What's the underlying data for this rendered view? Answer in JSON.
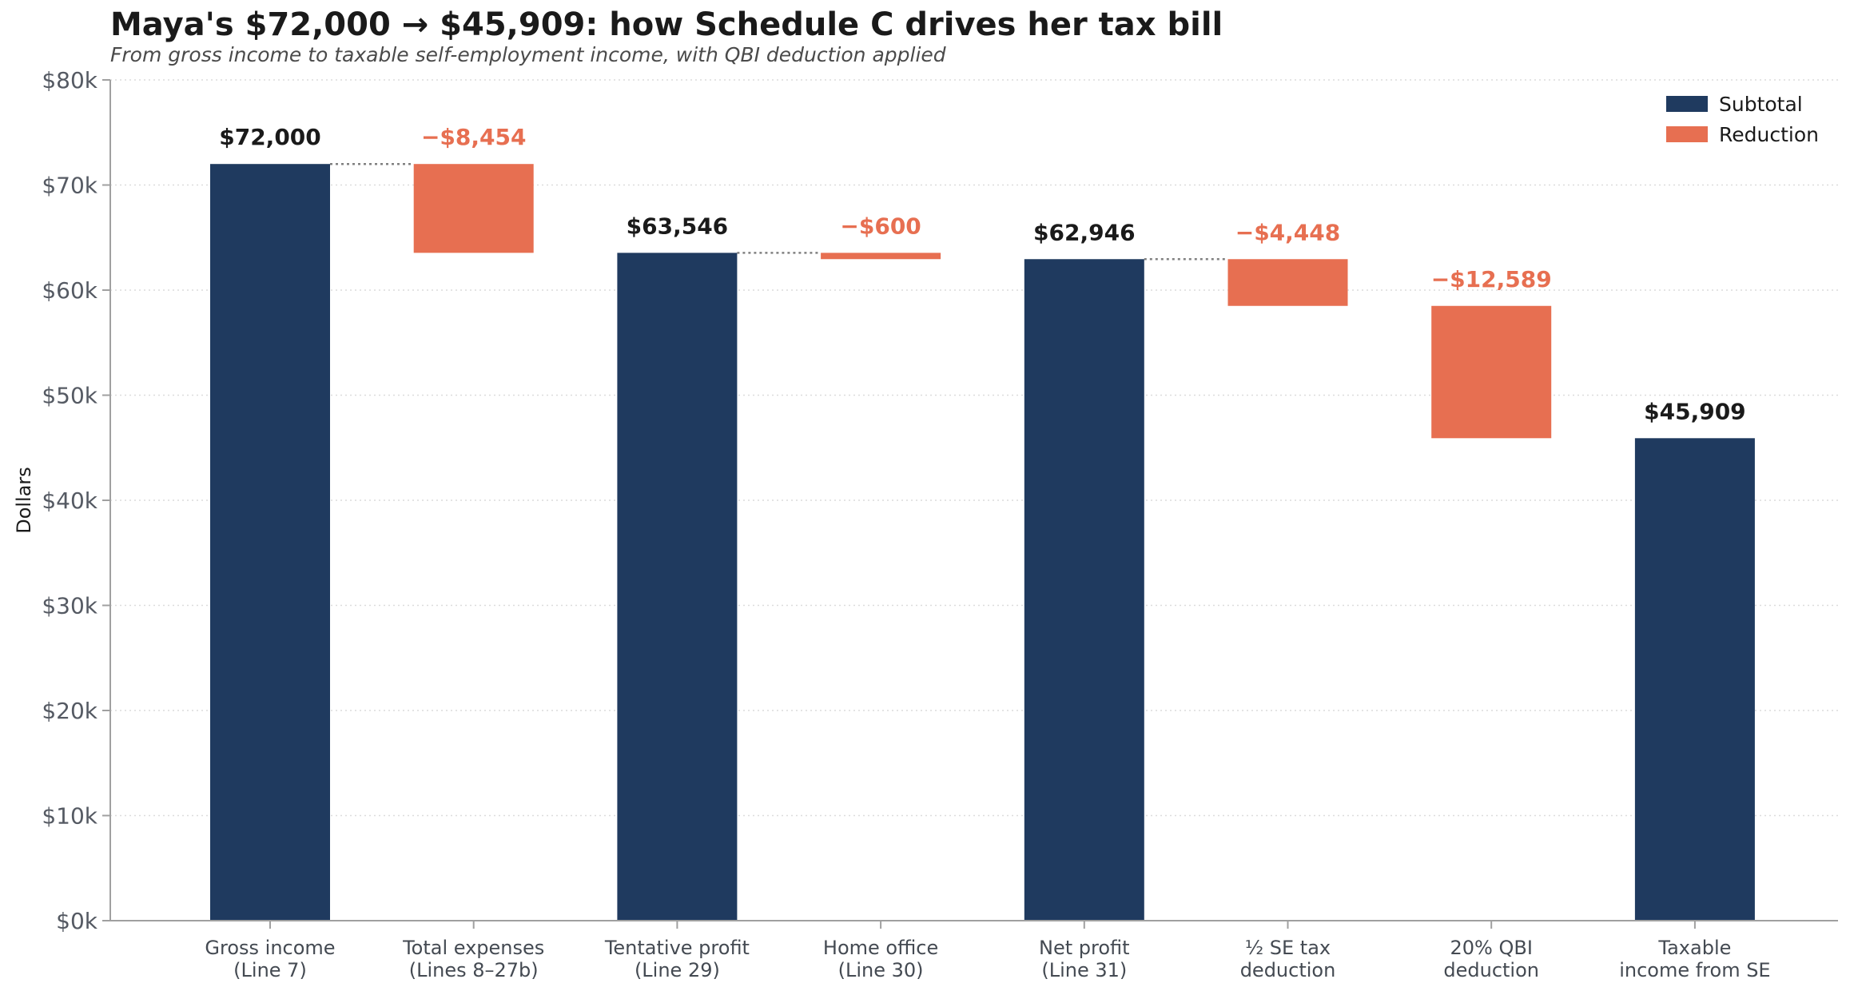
{
  "title": "Maya's $72,000 → $45,909: how Schedule C drives her tax bill",
  "subtitle": "From gross income to taxable self-employment income, with QBI deduction applied",
  "colors": {
    "subtotal": "#1f3a5f",
    "reduction": "#e76f51",
    "axis": "#a0a0a0",
    "grid": "#dcdcdc",
    "connector": "#808080",
    "subtotal_label": "#1a1a1a"
  },
  "chart_data": {
    "type": "bar",
    "subtype": "waterfall",
    "title": "Maya's $72,000 → $45,909: how Schedule C drives her tax bill",
    "subtitle": "From gross income to taxable self-employment income, with QBI deduction applied",
    "ylabel": "Dollars",
    "xlabel": "",
    "ylim": [
      0,
      80000
    ],
    "yticks": [
      0,
      10000,
      20000,
      30000,
      40000,
      50000,
      60000,
      70000,
      80000
    ],
    "ytick_labels": [
      "$0k",
      "$10k",
      "$20k",
      "$30k",
      "$40k",
      "$50k",
      "$60k",
      "$70k",
      "$80k"
    ],
    "grid": "horizontal dotted",
    "legend": {
      "position": "top-right",
      "entries": [
        {
          "label": "Subtotal",
          "kind": "subtotal"
        },
        {
          "label": "Reduction",
          "kind": "reduction"
        }
      ]
    },
    "bars": [
      {
        "label": [
          "Gross income",
          "(Line 7)"
        ],
        "kind": "subtotal",
        "bottom": 0,
        "top": 72000,
        "value_label": "$72,000",
        "connector_to_next": true
      },
      {
        "label": [
          "Total expenses",
          "(Lines 8–27b)"
        ],
        "kind": "reduction",
        "bottom": 63546,
        "top": 72000,
        "value_label": "−$8,454",
        "connector_to_next": false
      },
      {
        "label": [
          "Tentative profit",
          "(Line 29)"
        ],
        "kind": "subtotal",
        "bottom": 0,
        "top": 63546,
        "value_label": "$63,546",
        "connector_to_next": true
      },
      {
        "label": [
          "Home office",
          "(Line 30)"
        ],
        "kind": "reduction",
        "bottom": 62946,
        "top": 63546,
        "value_label": "−$600",
        "connector_to_next": false
      },
      {
        "label": [
          "Net profit",
          "(Line 31)"
        ],
        "kind": "subtotal",
        "bottom": 0,
        "top": 62946,
        "value_label": "$62,946",
        "connector_to_next": true
      },
      {
        "label": [
          "½ SE tax",
          "deduction"
        ],
        "kind": "reduction",
        "bottom": 58498,
        "top": 62946,
        "value_label": "−$4,448",
        "connector_to_next": false
      },
      {
        "label": [
          "20% QBI",
          "deduction"
        ],
        "kind": "reduction",
        "bottom": 45909,
        "top": 58498,
        "value_label": "−$12,589",
        "connector_to_next": false
      },
      {
        "label": [
          "Taxable",
          "income from SE"
        ],
        "kind": "subtotal",
        "bottom": 0,
        "top": 45909,
        "value_label": "$45,909",
        "connector_to_next": false
      }
    ]
  }
}
